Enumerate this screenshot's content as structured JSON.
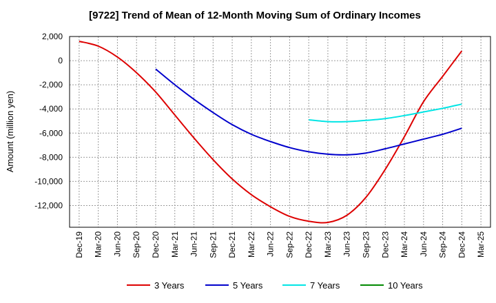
{
  "chart_data": {
    "type": "line",
    "title": "[9722]  Trend of Mean of 12-Month Moving Sum of Ordinary Incomes",
    "xlabel": "",
    "ylabel": "Amount (million yen)",
    "ylim": [
      -13800,
      2000
    ],
    "yticks": [
      2000,
      0,
      -2000,
      -4000,
      -6000,
      -8000,
      -10000,
      -12000
    ],
    "ytick_labels": [
      "2,000",
      "0",
      "-2,000",
      "-4,000",
      "-6,000",
      "-8,000",
      "-10,000",
      "-12,000"
    ],
    "categories": [
      "Dec-19",
      "Mar-20",
      "Jun-20",
      "Sep-20",
      "Dec-20",
      "Mar-21",
      "Jun-21",
      "Sep-21",
      "Dec-21",
      "Mar-22",
      "Jun-22",
      "Sep-22",
      "Dec-22",
      "Mar-23",
      "Jun-23",
      "Sep-23",
      "Dec-23",
      "Mar-24",
      "Jun-24",
      "Sep-24",
      "Dec-24",
      "Mar-25"
    ],
    "grid": true,
    "legend_position": "bottom",
    "series": [
      {
        "name": "3 Years",
        "color": "#dd0000",
        "values": [
          1600,
          1200,
          300,
          -1000,
          -2600,
          -4500,
          -6400,
          -8200,
          -9800,
          -11100,
          -12100,
          -12900,
          -13300,
          -13400,
          -12800,
          -11300,
          -9000,
          -6300,
          -3400,
          -1300,
          800,
          null
        ]
      },
      {
        "name": "5 Years",
        "color": "#0000cc",
        "values": [
          null,
          null,
          null,
          null,
          -700,
          -2000,
          -3200,
          -4300,
          -5300,
          -6100,
          -6700,
          -7200,
          -7550,
          -7750,
          -7800,
          -7650,
          -7300,
          -6900,
          -6500,
          -6100,
          -5600,
          null
        ]
      },
      {
        "name": "7 Years",
        "color": "#00e5e5",
        "values": [
          null,
          null,
          null,
          null,
          null,
          null,
          null,
          null,
          null,
          null,
          null,
          null,
          -4900,
          -5050,
          -5050,
          -4950,
          -4800,
          -4550,
          -4250,
          -3950,
          -3600,
          null
        ]
      },
      {
        "name": "10 Years",
        "color": "#008800",
        "values": [
          null,
          null,
          null,
          null,
          null,
          null,
          null,
          null,
          null,
          null,
          null,
          null,
          null,
          null,
          null,
          null,
          null,
          null,
          null,
          null,
          null,
          null
        ]
      }
    ]
  }
}
